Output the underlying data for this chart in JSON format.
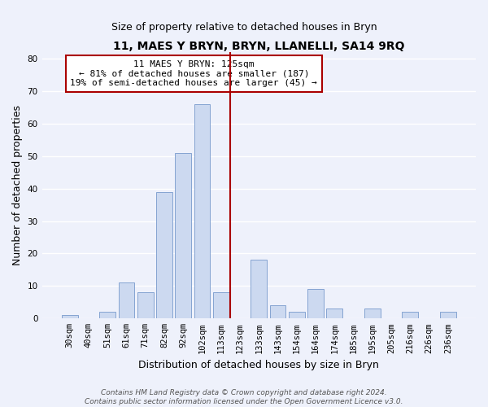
{
  "title": "11, MAES Y BRYN, BRYN, LLANELLI, SA14 9RQ",
  "subtitle": "Size of property relative to detached houses in Bryn",
  "xlabel": "Distribution of detached houses by size in Bryn",
  "ylabel": "Number of detached properties",
  "bar_labels": [
    "30sqm",
    "40sqm",
    "51sqm",
    "61sqm",
    "71sqm",
    "82sqm",
    "92sqm",
    "102sqm",
    "113sqm",
    "123sqm",
    "133sqm",
    "143sqm",
    "154sqm",
    "164sqm",
    "174sqm",
    "185sqm",
    "195sqm",
    "205sqm",
    "216sqm",
    "226sqm",
    "236sqm"
  ],
  "bar_values": [
    1,
    0,
    2,
    11,
    8,
    39,
    51,
    66,
    8,
    0,
    18,
    4,
    2,
    9,
    3,
    0,
    3,
    0,
    2,
    0,
    2
  ],
  "bar_color": "#ccd9f0",
  "bar_edge_color": "#7799cc",
  "vline_x_index": 9,
  "vline_color": "#aa0000",
  "ylim": [
    0,
    82
  ],
  "yticks": [
    0,
    10,
    20,
    30,
    40,
    50,
    60,
    70,
    80
  ],
  "annotation_title": "11 MAES Y BRYN: 125sqm",
  "annotation_line1": "← 81% of detached houses are smaller (187)",
  "annotation_line2": "19% of semi-detached houses are larger (45) →",
  "annotation_box_color": "#ffffff",
  "annotation_box_edge": "#aa0000",
  "footer1": "Contains HM Land Registry data © Crown copyright and database right 2024.",
  "footer2": "Contains public sector information licensed under the Open Government Licence v3.0.",
  "background_color": "#eef1fb",
  "grid_color": "#ffffff",
  "title_fontsize": 10,
  "subtitle_fontsize": 9,
  "axis_label_fontsize": 9,
  "tick_fontsize": 7.5,
  "footer_fontsize": 6.5
}
